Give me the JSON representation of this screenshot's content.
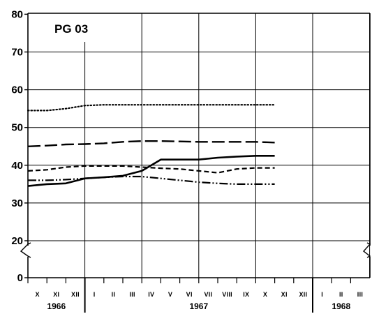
{
  "chart_data": {
    "type": "line",
    "title": "PG 03",
    "xlabel": "",
    "ylabel": "",
    "ylim": [
      0,
      80
    ],
    "y_ticks": [
      "0",
      "20",
      "30",
      "40",
      "50",
      "60",
      "70",
      "80"
    ],
    "y_axis_break": "between 0 and 20",
    "grid": true,
    "month_ticks": [
      "X",
      "XI",
      "XII",
      "I",
      "II",
      "III",
      "IV",
      "V",
      "VI",
      "VII",
      "VIII",
      "IX",
      "X",
      "XI",
      "XII",
      "I",
      "II",
      "III"
    ],
    "year_labels": [
      "1966",
      "1967",
      "1968"
    ],
    "x_range": [
      "1966-09",
      "1968-03"
    ],
    "series": [
      {
        "style": "dotted",
        "x": [
          "1966-09",
          "1966-10",
          "1966-11",
          "1966-12",
          "1967-01",
          "1967-02",
          "1967-03",
          "1967-04",
          "1967-05",
          "1967-06",
          "1967-07",
          "1967-08",
          "1967-09",
          "1967-10"
        ],
        "y": [
          54.5,
          54.5,
          55.0,
          55.8,
          56.0,
          56.0,
          56.0,
          56.0,
          56.0,
          56.0,
          56.0,
          56.0,
          56.0,
          56.0
        ]
      },
      {
        "style": "long-dash",
        "x": [
          "1966-09",
          "1966-10",
          "1966-11",
          "1966-12",
          "1967-01",
          "1967-02",
          "1967-03",
          "1967-04",
          "1967-05",
          "1967-06",
          "1967-07",
          "1967-08",
          "1967-09",
          "1967-10"
        ],
        "y": [
          45.0,
          45.2,
          45.5,
          45.6,
          45.8,
          46.2,
          46.4,
          46.4,
          46.3,
          46.2,
          46.2,
          46.2,
          46.2,
          46.0
        ]
      },
      {
        "style": "solid",
        "x": [
          "1966-09",
          "1966-10",
          "1966-11",
          "1966-12",
          "1967-01",
          "1967-02",
          "1967-03",
          "1967-04",
          "1967-05",
          "1967-06",
          "1967-07",
          "1967-08",
          "1967-09",
          "1967-10"
        ],
        "y": [
          34.5,
          35.0,
          35.2,
          36.5,
          36.8,
          37.2,
          38.5,
          41.5,
          41.5,
          41.5,
          42.0,
          42.3,
          42.5,
          42.5
        ]
      },
      {
        "style": "short-dash",
        "x": [
          "1966-09",
          "1966-10",
          "1966-11",
          "1966-12",
          "1967-01",
          "1967-02",
          "1967-03",
          "1967-04",
          "1967-05",
          "1967-06",
          "1967-07",
          "1967-08",
          "1967-09",
          "1967-10"
        ],
        "y": [
          38.5,
          38.8,
          39.5,
          39.8,
          39.8,
          39.8,
          39.5,
          39.2,
          39.0,
          38.5,
          38.0,
          39.0,
          39.3,
          39.3
        ]
      },
      {
        "style": "dash-dot-dot",
        "x": [
          "1966-09",
          "1966-10",
          "1966-11",
          "1966-12",
          "1967-01",
          "1967-02",
          "1967-03",
          "1967-04",
          "1967-05",
          "1967-06",
          "1967-07",
          "1967-08",
          "1967-09",
          "1967-10"
        ],
        "y": [
          36.0,
          36.0,
          36.2,
          36.5,
          36.8,
          37.0,
          37.0,
          36.5,
          36.0,
          35.5,
          35.2,
          35.0,
          35.0,
          35.0
        ]
      }
    ]
  }
}
